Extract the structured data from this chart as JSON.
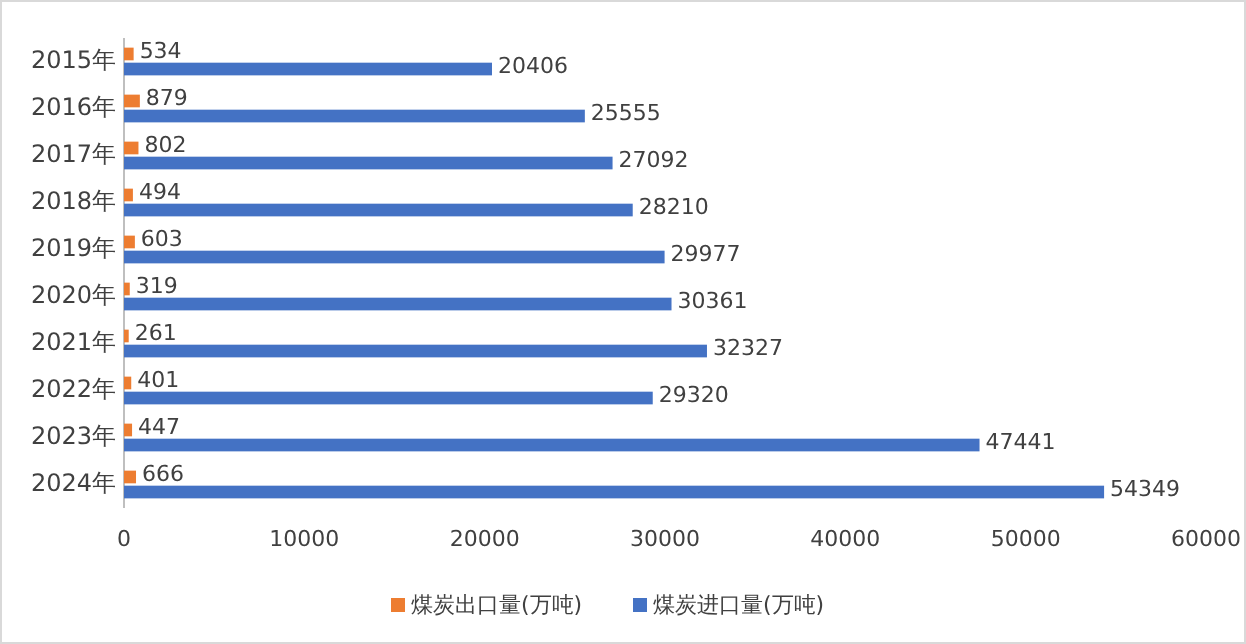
{
  "chart_data": {
    "type": "bar",
    "orientation": "horizontal",
    "categories": [
      "2015年",
      "2016年",
      "2017年",
      "2018年",
      "2019年",
      "2020年",
      "2021年",
      "2022年",
      "2023年",
      "2024年"
    ],
    "series": [
      {
        "name": "煤炭出口量(万吨)",
        "color": "#ed7d31",
        "values": [
          534,
          879,
          802,
          494,
          603,
          319,
          261,
          401,
          447,
          666
        ]
      },
      {
        "name": "煤炭进口量(万吨)",
        "color": "#4472c4",
        "values": [
          20406,
          25555,
          27092,
          28210,
          29977,
          30361,
          32327,
          29320,
          47441,
          54349
        ]
      }
    ],
    "xlim": [
      0,
      60000
    ],
    "xticks": [
      0,
      10000,
      20000,
      30000,
      40000,
      50000,
      60000
    ],
    "data_labels": true,
    "legend": "bottom",
    "grid": false
  }
}
